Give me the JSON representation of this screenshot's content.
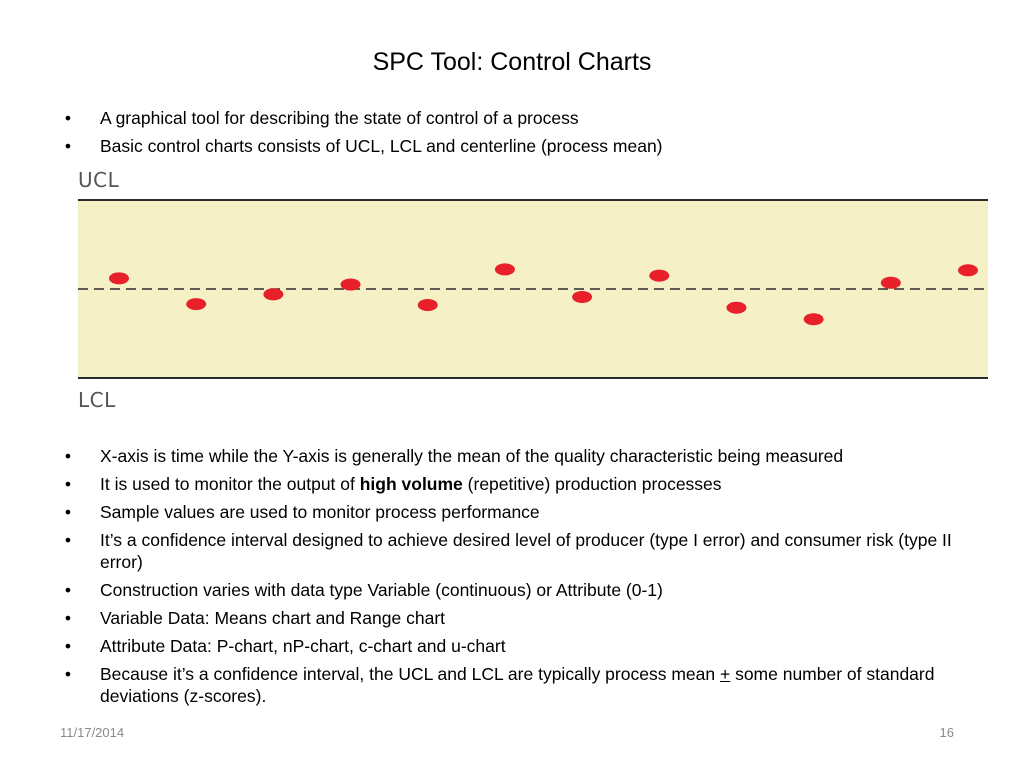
{
  "slide": {
    "title": "SPC Tool: Control Charts",
    "bullets_top": [
      "A graphical tool for describing the state of control of a process",
      "Basic control charts consists of UCL, LCL and centerline (process mean)"
    ],
    "bullets_bottom": {
      "b1": "X-axis is time while the Y-axis is generally the mean of the quality characteristic being measured",
      "b2_pre": "It is used to monitor the output of ",
      "b2_bold": "high volume",
      "b2_post": " (repetitive) production processes",
      "b3": "Sample values are used to monitor process performance",
      "b4": "It’s a confidence interval designed to achieve desired level of producer (type I error) and consumer risk (type II error)",
      "b5": "Construction varies with data type Variable (continuous) or Attribute (0-1)",
      "b6": "Variable Data: Means chart and Range chart",
      "b7": "Attribute Data: P-chart, nP-chart, c-chart and u-chart",
      "b8_pre": "Because it’s a confidence interval, the UCL and LCL are typically process mean ",
      "b8_symbol": "+",
      "b8_post": " some number of standard deviations (z-scores)."
    },
    "bullet_glyph": "•",
    "footer_date": "11/17/2014",
    "page_number": "16"
  },
  "chart_data": {
    "type": "scatter",
    "upper_label": "UCL",
    "lower_label": "LCL",
    "ylim": [
      -1,
      1
    ],
    "centerline": 0,
    "points": [
      0.12,
      -0.17,
      -0.06,
      0.05,
      -0.18,
      0.22,
      -0.09,
      0.15,
      -0.21,
      -0.34,
      0.07,
      0.21
    ],
    "colors": {
      "band": "#f5f0c6",
      "limit_line": "#2b2b2b",
      "centerline": "#2b2b2b",
      "point": "#e8202a"
    }
  }
}
